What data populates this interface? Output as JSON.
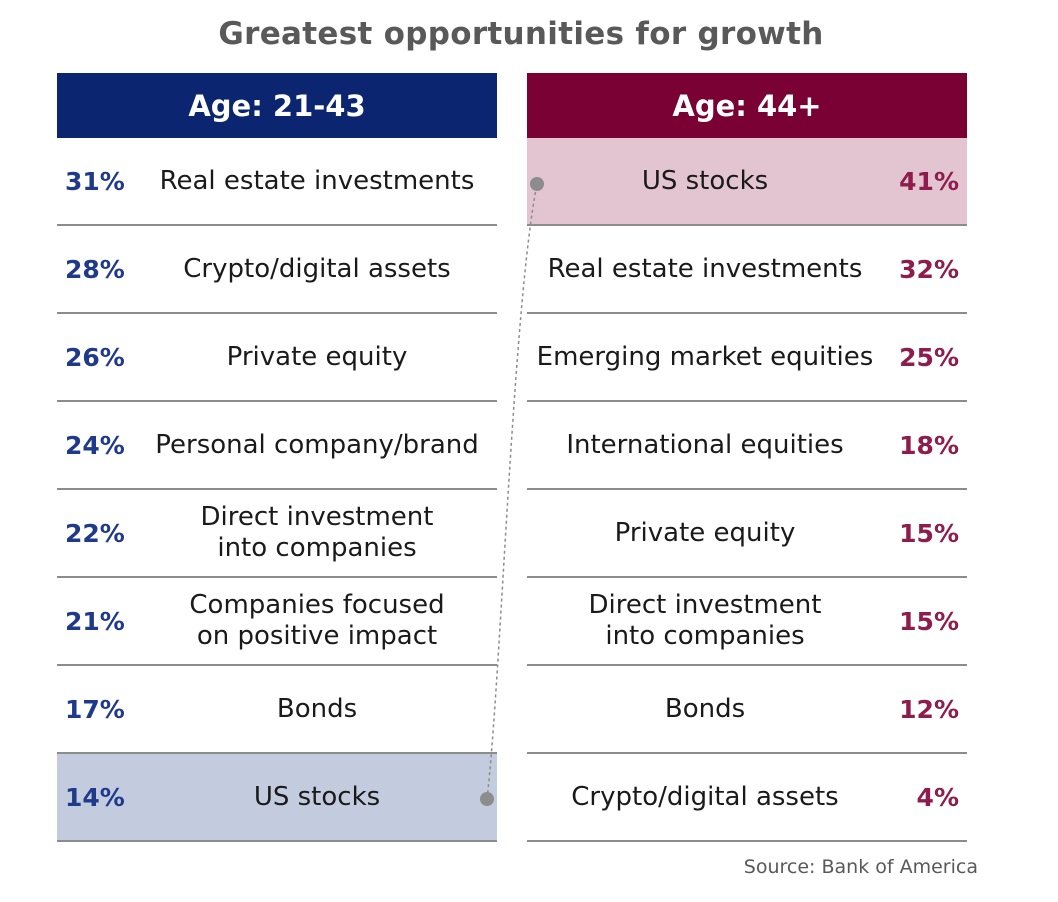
{
  "title": "Greatest opportunities for growth",
  "source": "Source: Bank of America",
  "colors": {
    "left_header": "#0b2570",
    "right_header": "#7a0134",
    "left_highlight": "#c3cbde",
    "right_highlight": "#e2c5d0",
    "left_percent": "#1f3a8a",
    "right_percent": "#8e1c4c"
  },
  "chart_data": {
    "type": "table",
    "title": "Greatest opportunities for growth",
    "tables": [
      {
        "header": "Age: 21-43",
        "rows": [
          {
            "value": "31%",
            "label": "Real estate investments"
          },
          {
            "value": "28%",
            "label": "Crypto/digital assets"
          },
          {
            "value": "26%",
            "label": "Private equity"
          },
          {
            "value": "24%",
            "label": "Personal company/brand"
          },
          {
            "value": "22%",
            "label": "Direct investment\ninto companies"
          },
          {
            "value": "21%",
            "label": "Companies focused\non positive impact"
          },
          {
            "value": "17%",
            "label": "Bonds"
          },
          {
            "value": "14%",
            "label": "US stocks",
            "highlight": true
          }
        ]
      },
      {
        "header": "Age: 44+",
        "rows": [
          {
            "value": "41%",
            "label": "US stocks",
            "highlight": true
          },
          {
            "value": "32%",
            "label": "Real estate investments"
          },
          {
            "value": "25%",
            "label": "Emerging market equities"
          },
          {
            "value": "18%",
            "label": "International equities"
          },
          {
            "value": "15%",
            "label": "Private equity"
          },
          {
            "value": "15%",
            "label": "Direct investment\ninto companies"
          },
          {
            "value": "12%",
            "label": "Bonds"
          },
          {
            "value": "4%",
            "label": "Crypto/digital assets"
          }
        ]
      }
    ],
    "connector": {
      "from": "Age: 21-43 / US stocks",
      "to": "Age: 44+ / US stocks",
      "style": "dashed"
    }
  }
}
